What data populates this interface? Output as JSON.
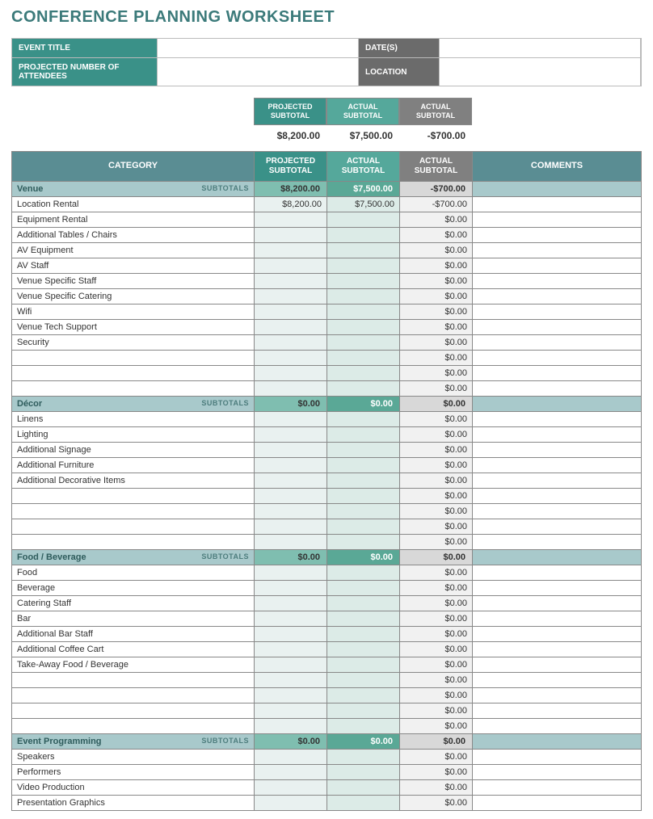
{
  "title": "CONFERENCE PLANNING WORKSHEET",
  "info": {
    "event_title_label": "EVENT TITLE",
    "event_title_value": "",
    "dates_label": "DATE(S)",
    "dates_value": "",
    "attendees_label": "PROJECTED NUMBER OF ATTENDEES",
    "attendees_value": "",
    "location_label": "LOCATION",
    "location_value": ""
  },
  "summary_headers": {
    "projected": "PROJECTED SUBTOTAL",
    "actual1": "ACTUAL SUBTOTAL",
    "actual2": "ACTUAL SUBTOTAL"
  },
  "summary_values": {
    "projected": "$8,200.00",
    "actual1": "$7,500.00",
    "actual2": "-$700.00"
  },
  "table_headers": {
    "category": "CATEGORY",
    "projected": "PROJECTED SUBTOTAL",
    "actual1": "ACTUAL SUBTOTAL",
    "actual2": "ACTUAL SUBTOTAL",
    "comments": "COMMENTS"
  },
  "subtotals_tag": "SUBTOTALS",
  "colors": {
    "title": "#3b7a7a",
    "teal_dark": "#3a9188",
    "teal_mid": "#55a89b",
    "gray_hdr": "#808080",
    "blue_hdr": "#5a8d93",
    "sub_row": "#a8c9cb",
    "sub_p": "#7fbeb0",
    "sub_a1": "#5aa896",
    "sub_a2": "#d8d8d8",
    "item_p": "#e9f1f0",
    "item_a1": "#dcebe7",
    "item_a2": "#f1f1f1",
    "border": "#888888"
  },
  "sections": [
    {
      "name": "Venue",
      "projected": "$8,200.00",
      "actual1": "$7,500.00",
      "actual2": "-$700.00",
      "rows": [
        {
          "label": "Location Rental",
          "p": "$8,200.00",
          "a1": "$7,500.00",
          "a2": "-$700.00"
        },
        {
          "label": "Equipment Rental",
          "p": "",
          "a1": "",
          "a2": "$0.00"
        },
        {
          "label": "Additional Tables / Chairs",
          "p": "",
          "a1": "",
          "a2": "$0.00"
        },
        {
          "label": "AV Equipment",
          "p": "",
          "a1": "",
          "a2": "$0.00"
        },
        {
          "label": "AV Staff",
          "p": "",
          "a1": "",
          "a2": "$0.00"
        },
        {
          "label": "Venue Specific Staff",
          "p": "",
          "a1": "",
          "a2": "$0.00"
        },
        {
          "label": "Venue Specific Catering",
          "p": "",
          "a1": "",
          "a2": "$0.00"
        },
        {
          "label": "Wifi",
          "p": "",
          "a1": "",
          "a2": "$0.00"
        },
        {
          "label": "Venue Tech Support",
          "p": "",
          "a1": "",
          "a2": "$0.00"
        },
        {
          "label": "Security",
          "p": "",
          "a1": "",
          "a2": "$0.00"
        },
        {
          "label": "",
          "p": "",
          "a1": "",
          "a2": "$0.00"
        },
        {
          "label": "",
          "p": "",
          "a1": "",
          "a2": "$0.00"
        },
        {
          "label": "",
          "p": "",
          "a1": "",
          "a2": "$0.00"
        }
      ]
    },
    {
      "name": "Décor",
      "projected": "$0.00",
      "actual1": "$0.00",
      "actual2": "$0.00",
      "rows": [
        {
          "label": "Linens",
          "p": "",
          "a1": "",
          "a2": "$0.00"
        },
        {
          "label": "Lighting",
          "p": "",
          "a1": "",
          "a2": "$0.00"
        },
        {
          "label": "Additional Signage",
          "p": "",
          "a1": "",
          "a2": "$0.00"
        },
        {
          "label": "Additional Furniture",
          "p": "",
          "a1": "",
          "a2": "$0.00"
        },
        {
          "label": "Additional Decorative Items",
          "p": "",
          "a1": "",
          "a2": "$0.00"
        },
        {
          "label": "",
          "p": "",
          "a1": "",
          "a2": "$0.00"
        },
        {
          "label": "",
          "p": "",
          "a1": "",
          "a2": "$0.00"
        },
        {
          "label": "",
          "p": "",
          "a1": "",
          "a2": "$0.00"
        },
        {
          "label": "",
          "p": "",
          "a1": "",
          "a2": "$0.00"
        }
      ]
    },
    {
      "name": "Food / Beverage",
      "projected": "$0.00",
      "actual1": "$0.00",
      "actual2": "$0.00",
      "rows": [
        {
          "label": "Food",
          "p": "",
          "a1": "",
          "a2": "$0.00"
        },
        {
          "label": "Beverage",
          "p": "",
          "a1": "",
          "a2": "$0.00"
        },
        {
          "label": "Catering Staff",
          "p": "",
          "a1": "",
          "a2": "$0.00"
        },
        {
          "label": "Bar",
          "p": "",
          "a1": "",
          "a2": "$0.00"
        },
        {
          "label": "Additional Bar Staff",
          "p": "",
          "a1": "",
          "a2": "$0.00"
        },
        {
          "label": "Additional Coffee Cart",
          "p": "",
          "a1": "",
          "a2": "$0.00"
        },
        {
          "label": "Take-Away Food / Beverage",
          "p": "",
          "a1": "",
          "a2": "$0.00"
        },
        {
          "label": "",
          "p": "",
          "a1": "",
          "a2": "$0.00"
        },
        {
          "label": "",
          "p": "",
          "a1": "",
          "a2": "$0.00"
        },
        {
          "label": "",
          "p": "",
          "a1": "",
          "a2": "$0.00"
        },
        {
          "label": "",
          "p": "",
          "a1": "",
          "a2": "$0.00"
        }
      ]
    },
    {
      "name": "Event Programming",
      "projected": "$0.00",
      "actual1": "$0.00",
      "actual2": "$0.00",
      "rows": [
        {
          "label": "Speakers",
          "p": "",
          "a1": "",
          "a2": "$0.00"
        },
        {
          "label": "Performers",
          "p": "",
          "a1": "",
          "a2": "$0.00"
        },
        {
          "label": "Video Production",
          "p": "",
          "a1": "",
          "a2": "$0.00"
        },
        {
          "label": "Presentation Graphics",
          "p": "",
          "a1": "",
          "a2": "$0.00"
        }
      ]
    }
  ]
}
